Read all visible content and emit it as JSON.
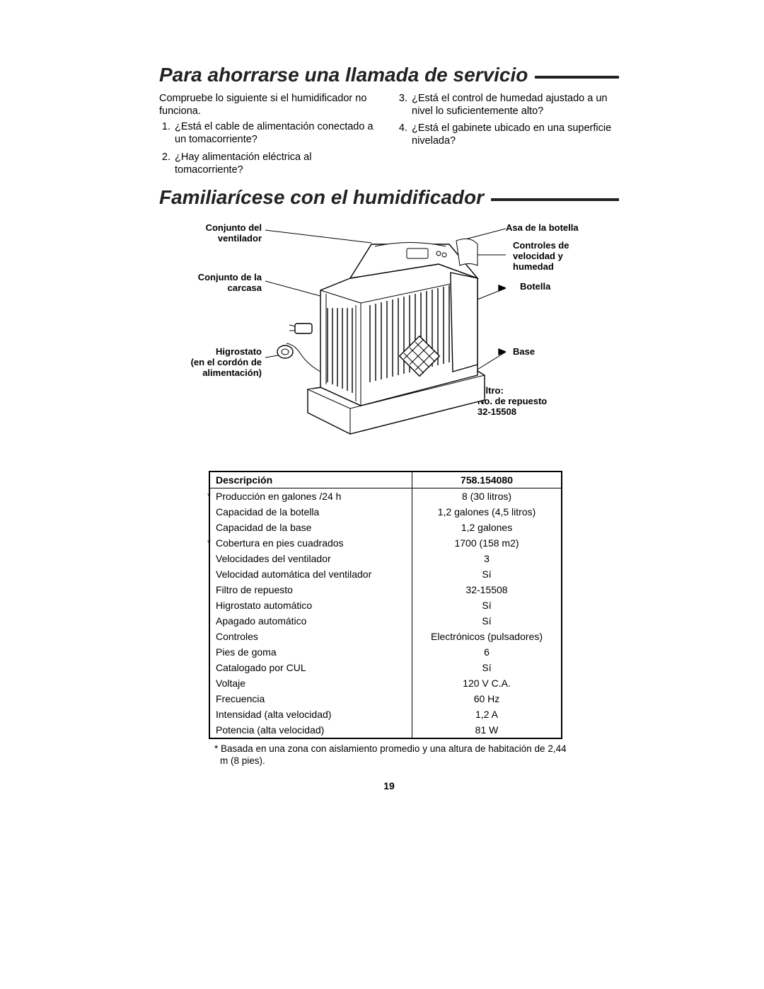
{
  "section1": {
    "title": "Para ahorrarse una llamada de servicio",
    "intro": "Compruebe lo siguiente si el humidificador no funciona.",
    "items_left": [
      "¿Está el cable de alimentación conectado a un tomacorriente?",
      "¿Hay alimentación eléctrica al tomacorriente?"
    ],
    "items_right": [
      "¿Está el control de humedad ajustado a un nivel lo suficientemente alto?",
      "¿Está el gabinete ubicado en una superficie nivelada?"
    ]
  },
  "section2": {
    "title": "Familiarícese con el humidificador",
    "labels": {
      "fan_assy": "Conjunto del\nventilador",
      "housing_assy": "Conjunto de la\ncarcasa",
      "hygrostat": "Higrostato\n(en el cordón de\nalimentación)",
      "bottle_handle": "Asa de la botella",
      "controls": "Controles de\nvelocidad y\nhumedad",
      "bottle": "Botella",
      "base": "Base",
      "filter": "Filtro:\nNo. de repuesto\n32-15508"
    }
  },
  "spec_table": {
    "headers": {
      "desc": "Descripción",
      "model": "758.154080"
    },
    "rows": [
      {
        "star": true,
        "label": "Producción en galones /24 h",
        "value": "8 (30 litros)"
      },
      {
        "star": false,
        "label": "Capacidad de la botella",
        "value": "1,2 galones (4,5 litros)"
      },
      {
        "star": false,
        "label": "Capacidad de la base",
        "value": "1,2 galones"
      },
      {
        "star": true,
        "label": "Cobertura en pies cuadrados",
        "value": "1700 (158 m2)"
      },
      {
        "star": false,
        "label": "Velocidades del ventilador",
        "value": "3"
      },
      {
        "star": false,
        "label": "Velocidad automática del ventilador",
        "value": "Sí"
      },
      {
        "star": false,
        "label": "Filtro de repuesto",
        "value": "32-15508"
      },
      {
        "star": false,
        "label": "Higrostato automático",
        "value": "Sí"
      },
      {
        "star": false,
        "label": "Apagado automático",
        "value": "Sí"
      },
      {
        "star": false,
        "label": "Controles",
        "value": "Electrónicos (pulsadores)"
      },
      {
        "star": false,
        "label": "Pies de goma",
        "value": "6"
      },
      {
        "star": false,
        "label": "Catalogado por CUL",
        "value": "Sí"
      },
      {
        "star": false,
        "label": "Voltaje",
        "value": "120 V C.A."
      },
      {
        "star": false,
        "label": "Frecuencia",
        "value": "60 Hz"
      },
      {
        "star": false,
        "label": "Intensidad (alta velocidad)",
        "value": "1,2 A"
      },
      {
        "star": false,
        "label": "Potencia (alta velocidad)",
        "value": "81 W"
      }
    ],
    "footnote": "* Basada en una zona con aislamiento promedio y una altura de habitación de 2,44 m (8 pies)."
  },
  "page_number": "19",
  "colors": {
    "text": "#000000",
    "rule": "#222222",
    "background": "#ffffff"
  }
}
